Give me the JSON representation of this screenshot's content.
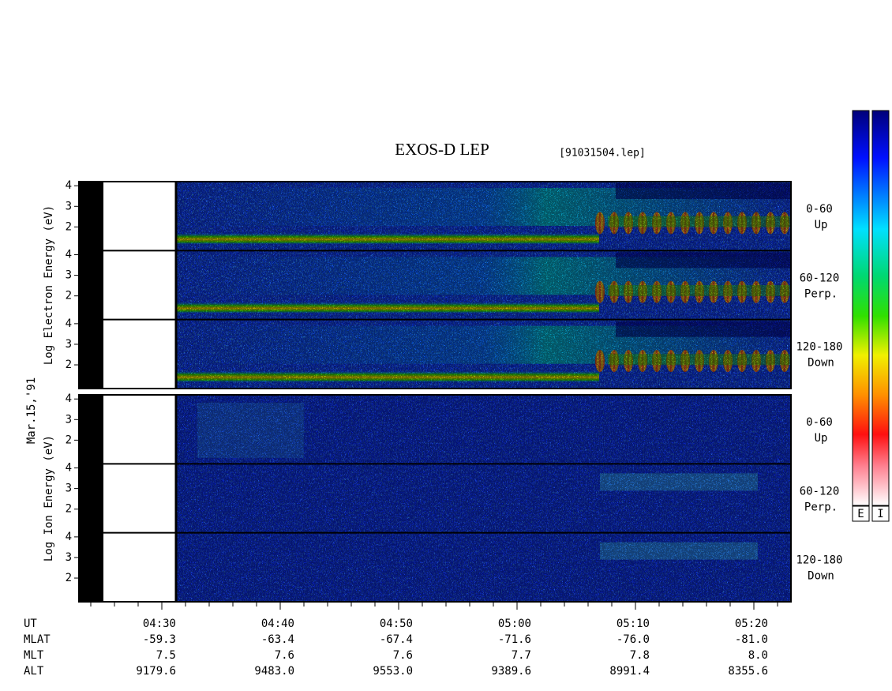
{
  "chart_data": {
    "type": "spectrogram",
    "title": "EXOS-D LEP",
    "subtitle": "[91031504.lep]",
    "date": "Mar.15,'91",
    "ylim": [
      0.85,
      4.2
    ],
    "yticks": [
      2,
      3,
      4
    ],
    "panels": [
      {
        "ylabel": "Log Electron Energy (eV)",
        "species": "E",
        "subpanels": [
          [
            "0-60",
            "Up"
          ],
          [
            "60-120",
            "Perp."
          ],
          [
            "120-180",
            "Down"
          ]
        ]
      },
      {
        "ylabel": "Log Ion Energy (eV)",
        "species": "I",
        "subpanels": [
          [
            "0-60",
            "Up"
          ],
          [
            "60-120",
            "Perp."
          ],
          [
            "120-180",
            "Down"
          ]
        ]
      }
    ],
    "colorbar_labels": [
      "E",
      "I"
    ],
    "x_rows": [
      {
        "name": "UT",
        "values": [
          "04:30",
          "04:40",
          "04:50",
          "05:00",
          "05:10",
          "05:20"
        ]
      },
      {
        "name": "MLAT",
        "values": [
          "-59.3",
          "-63.4",
          "-67.4",
          "-71.6",
          "-76.0",
          "-81.0"
        ]
      },
      {
        "name": "MLT",
        "values": [
          "7.5",
          "7.6",
          "7.6",
          "7.7",
          "7.8",
          "8.0"
        ]
      },
      {
        "name": "ALT",
        "values": [
          "9179.6",
          "9483.0",
          "9553.0",
          "9389.6",
          "8991.4",
          "8355.6"
        ]
      }
    ]
  }
}
